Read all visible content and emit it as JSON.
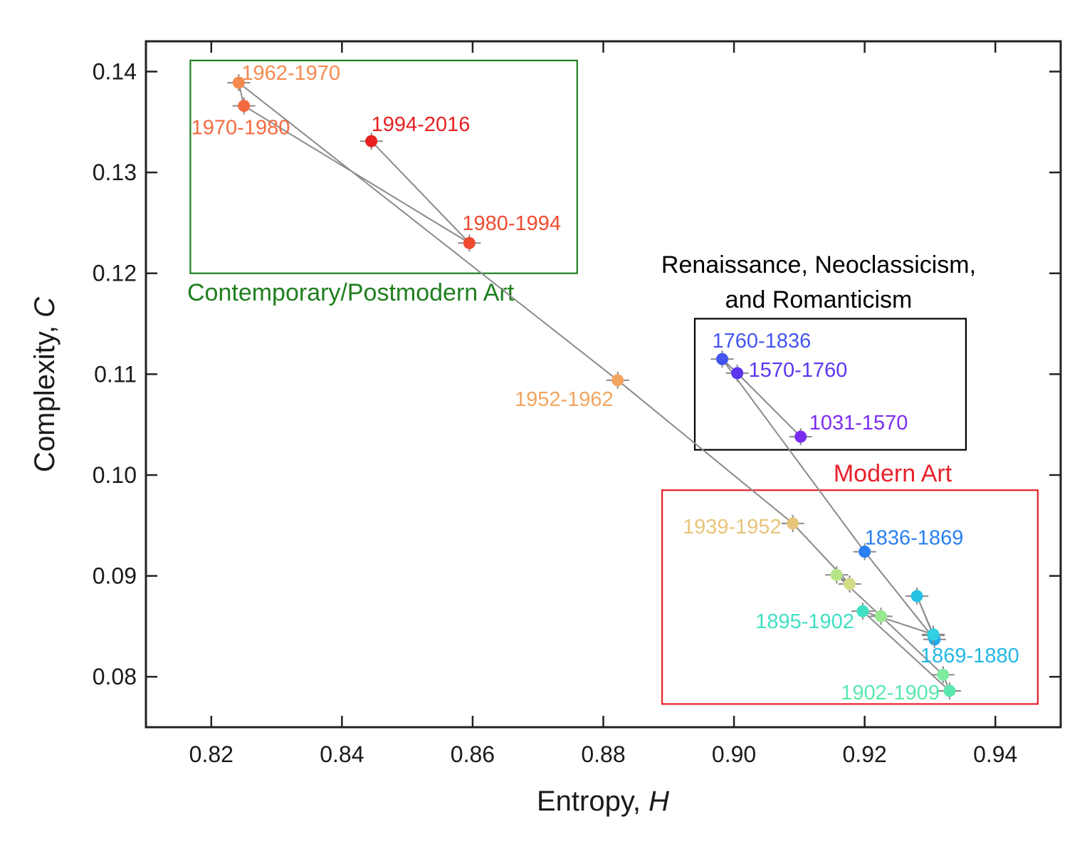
{
  "chart_data": {
    "type": "scatter",
    "xlabel": "Entropy, ",
    "xlabel_var": "H",
    "ylabel": "Complexity, ",
    "ylabel_var": "C",
    "xlim": [
      0.81,
      0.95
    ],
    "ylim": [
      0.075,
      0.143
    ],
    "xticks": [
      0.82,
      0.84,
      0.86,
      0.88,
      0.9,
      0.92,
      0.94
    ],
    "yticks": [
      0.08,
      0.09,
      0.1,
      0.11,
      0.12,
      0.13,
      0.14
    ],
    "xtick_labels": [
      "0.82",
      "0.84",
      "0.86",
      "0.88",
      "0.90",
      "0.92",
      "0.94"
    ],
    "ytick_labels": [
      "0.08",
      "0.09",
      "0.10",
      "0.11",
      "0.12",
      "0.13",
      "0.14"
    ],
    "grid": false,
    "points": [
      {
        "label": "1031-1570",
        "x": 0.9102,
        "y": 0.1038,
        "color": "#7b2cf0"
      },
      {
        "label": "1570-1760",
        "x": 0.9005,
        "y": 0.1101,
        "color": "#5c35f0"
      },
      {
        "label": "1760-1836",
        "x": 0.8982,
        "y": 0.1115,
        "color": "#4455ee"
      },
      {
        "label": "1836-1869",
        "x": 0.92,
        "y": 0.0924,
        "color": "#2a7ff0"
      },
      {
        "label": "",
        "x": 0.9307,
        "y": 0.0837,
        "color": "#22a8e8"
      },
      {
        "label": "1869-1880",
        "x": 0.9305,
        "y": 0.0841,
        "color": "#24b8e6"
      },
      {
        "label": "",
        "x": 0.928,
        "y": 0.088,
        "color": "#26c2e4"
      },
      {
        "label": "",
        "x": 0.9305,
        "y": 0.0842,
        "color": "#30d0e0"
      },
      {
        "label": "1895-1902",
        "x": 0.9197,
        "y": 0.0865,
        "color": "#40e0c4"
      },
      {
        "label": "1902-1909",
        "x": 0.933,
        "y": 0.0786,
        "color": "#5ae8b0"
      },
      {
        "label": "",
        "x": 0.932,
        "y": 0.0802,
        "color": "#80eca0"
      },
      {
        "label": "",
        "x": 0.9225,
        "y": 0.086,
        "color": "#98e890"
      },
      {
        "label": "",
        "x": 0.9157,
        "y": 0.0901,
        "color": "#b8e488"
      },
      {
        "label": "",
        "x": 0.9177,
        "y": 0.0892,
        "color": "#d2dc84"
      },
      {
        "label": "1939-1952",
        "x": 0.909,
        "y": 0.0952,
        "color": "#e8c47a"
      },
      {
        "label": "1952-1962",
        "x": 0.8822,
        "y": 0.1094,
        "color": "#f2a560"
      },
      {
        "label": "1962-1970",
        "x": 0.8242,
        "y": 0.1389,
        "color": "#f58a50"
      },
      {
        "label": "1970-1980",
        "x": 0.825,
        "y": 0.1366,
        "color": "#f36a40"
      },
      {
        "label": "1980-1994",
        "x": 0.8595,
        "y": 0.123,
        "color": "#f04a30"
      },
      {
        "label": "1994-2016",
        "x": 0.8445,
        "y": 0.1331,
        "color": "#e82020"
      }
    ],
    "path_order": [
      "1031-1570",
      "1570-1760",
      "1760-1836",
      "1836-1869",
      "p5",
      "1869-1880",
      "p7",
      "p8",
      "1895-1902",
      "1902-1909",
      "p11",
      "p12",
      "p13",
      "p14",
      "1939-1952",
      "1952-1962",
      "1962-1970",
      "1970-1980",
      "1980-1994",
      "1994-2016"
    ],
    "regions": [
      {
        "label": "Contemporary/Postmodern Art",
        "color": "#1f7f1f",
        "x0": 0.8168,
        "x1": 0.876,
        "y0": 0.12,
        "y1": 0.1411
      },
      {
        "label_lines": [
          "Renaissance, Neoclassicism,",
          "and Romanticism"
        ],
        "color": "#000000",
        "x0": 0.894,
        "x1": 0.9355,
        "y0": 0.1025,
        "y1": 0.1155
      },
      {
        "label": "Modern Art",
        "color": "#e8202a",
        "x0": 0.889,
        "x1": 0.9465,
        "y0": 0.0773,
        "y1": 0.0985
      }
    ]
  }
}
